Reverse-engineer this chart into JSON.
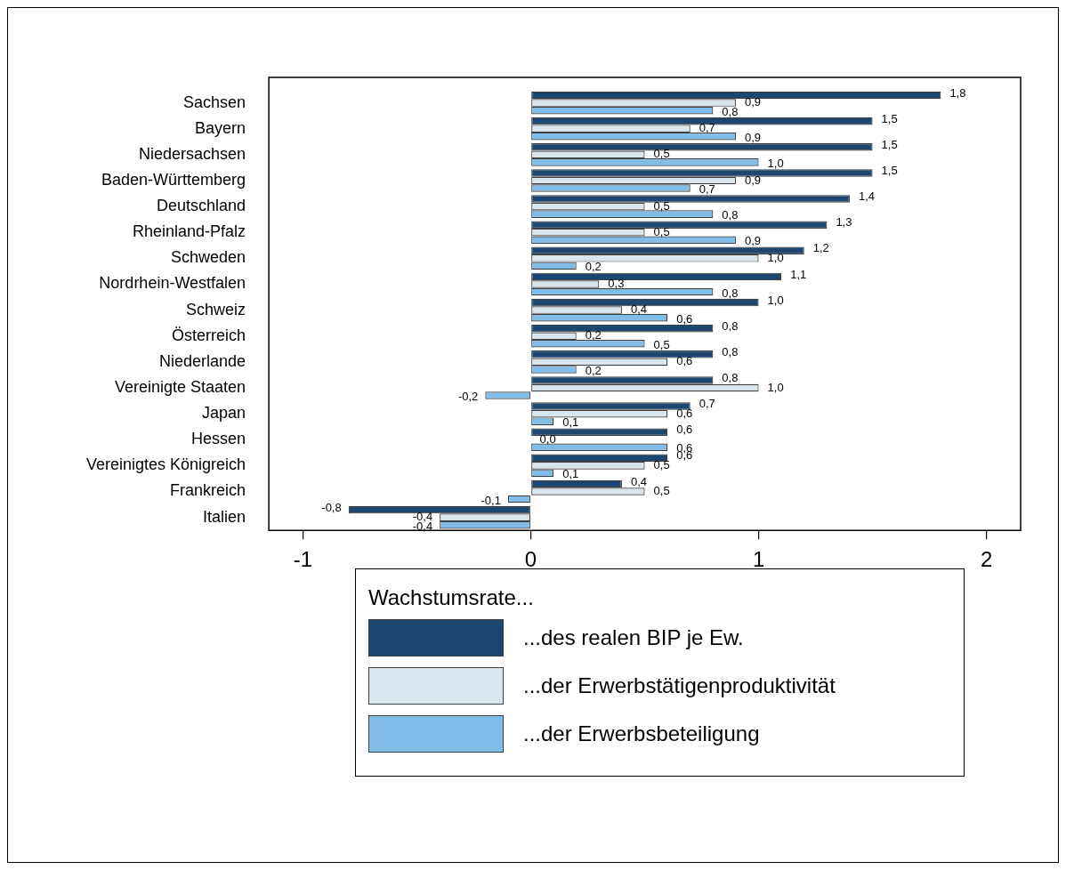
{
  "chart_data": {
    "type": "bar",
    "orientation": "horizontal",
    "categories": [
      "Sachsen",
      "Bayern",
      "Niedersachsen",
      "Baden-Württemberg",
      "Deutschland",
      "Rheinland-Pfalz",
      "Schweden",
      "Nordrhein-Westfalen",
      "Schweiz",
      "Österreich",
      "Niederlande",
      "Vereinigte Staaten",
      "Japan",
      "Hessen",
      "Vereinigtes Königreich",
      "Frankreich",
      "Italien"
    ],
    "series": [
      {
        "name": "...des realen BIP je Ew.",
        "color": "#1d4670",
        "values": [
          1.8,
          1.5,
          1.5,
          1.5,
          1.4,
          1.3,
          1.2,
          1.1,
          1.0,
          0.8,
          0.8,
          0.8,
          0.7,
          0.6,
          0.6,
          0.4,
          -0.8
        ],
        "value_labels": [
          "1,8",
          "1,5",
          "1,5",
          "1,5",
          "1,4",
          "1,3",
          "1,2",
          "1,1",
          "1,0",
          "0,8",
          "0,8",
          "0,8",
          "0,7",
          "0,6",
          "0,6",
          "0,4",
          "-0,8"
        ]
      },
      {
        "name": "...der Erwerbstätigenproduktivität",
        "color": "#dae6ee",
        "values": [
          0.9,
          0.7,
          0.5,
          0.9,
          0.5,
          0.5,
          1.0,
          0.3,
          0.4,
          0.2,
          0.6,
          1.0,
          0.6,
          0.0,
          0.5,
          0.5,
          -0.4
        ],
        "value_labels": [
          "0,9",
          "0,7",
          "0,5",
          "0,9",
          "0,5",
          "0,5",
          "1,0",
          "0,3",
          "0,4",
          "0,2",
          "0,6",
          "1,0",
          "0,6",
          "0,0",
          "0,5",
          "0,5",
          "-0,4"
        ]
      },
      {
        "name": "...der Erwerbsbeteiligung",
        "color": "#80bde8",
        "values": [
          0.8,
          0.9,
          1.0,
          0.7,
          0.8,
          0.9,
          0.2,
          0.8,
          0.6,
          0.5,
          0.2,
          -0.2,
          0.1,
          0.6,
          0.1,
          -0.1,
          -0.4
        ],
        "value_labels": [
          "0,8",
          "0,9",
          "1,0",
          "0,7",
          "0,8",
          "0,9",
          "0,2",
          "0,8",
          "0,6",
          "0,5",
          "0,2",
          "-0,2",
          "0,1",
          "0,6",
          "0,1",
          "-0,1",
          "-0,4"
        ]
      }
    ],
    "xlim": [
      -1.15,
      2.15
    ],
    "xticks": [
      -1,
      0,
      1,
      2
    ],
    "legend": "bottom",
    "legend_title": "Wachstumsrate..."
  }
}
